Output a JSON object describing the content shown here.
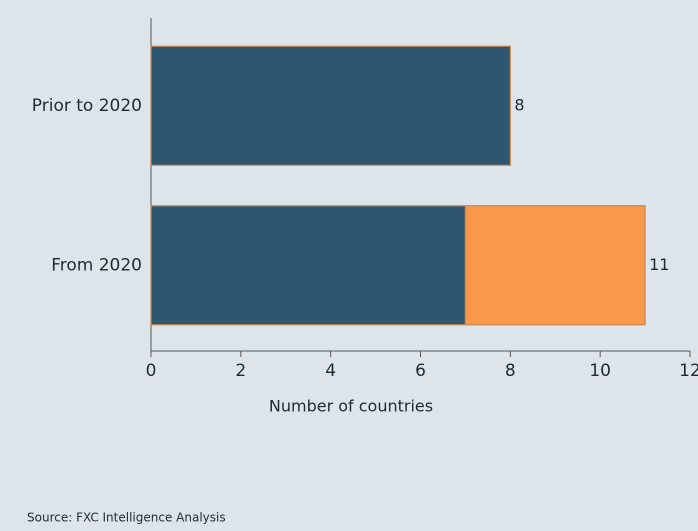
{
  "chart_data": {
    "type": "stacked-barh",
    "categories": [
      "Prior to 2020",
      "From 2020"
    ],
    "series": [
      {
        "color": "#2f5670",
        "values": [
          8,
          7
        ]
      },
      {
        "color": "#f7984a",
        "values": [
          0,
          4
        ]
      }
    ],
    "totals": [
      8,
      11
    ],
    "xlim": [
      0,
      12
    ],
    "xticks": [
      0,
      2,
      4,
      6,
      8,
      10,
      12
    ],
    "x_label": "Number of countries",
    "source": "Source: FXC Intelligence Analysis"
  }
}
